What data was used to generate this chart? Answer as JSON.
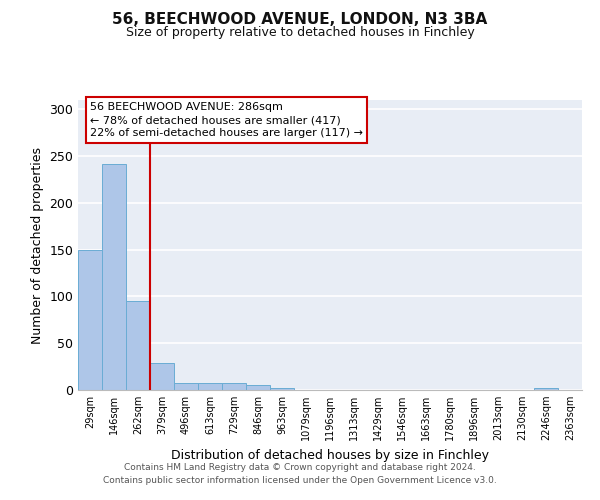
{
  "title1": "56, BEECHWOOD AVENUE, LONDON, N3 3BA",
  "title2": "Size of property relative to detached houses in Finchley",
  "xlabel": "Distribution of detached houses by size in Finchley",
  "ylabel": "Number of detached properties",
  "bin_labels": [
    "29sqm",
    "146sqm",
    "262sqm",
    "379sqm",
    "496sqm",
    "613sqm",
    "729sqm",
    "846sqm",
    "963sqm",
    "1079sqm",
    "1196sqm",
    "1313sqm",
    "1429sqm",
    "1546sqm",
    "1663sqm",
    "1780sqm",
    "1896sqm",
    "2013sqm",
    "2130sqm",
    "2246sqm",
    "2363sqm"
  ],
  "bar_values": [
    150,
    242,
    95,
    29,
    8,
    7,
    7,
    5,
    2,
    0,
    0,
    0,
    0,
    0,
    0,
    0,
    0,
    0,
    0,
    2,
    0
  ],
  "bar_color": "#aec6e8",
  "bar_edge_color": "#6aacd4",
  "annotation_line1": "56 BEECHWOOD AVENUE: 286sqm",
  "annotation_line2": "← 78% of detached houses are smaller (417)",
  "annotation_line3": "22% of semi-detached houses are larger (117) →",
  "vline_color": "#cc0000",
  "ylim": [
    0,
    310
  ],
  "yticks": [
    0,
    50,
    100,
    150,
    200,
    250,
    300
  ],
  "background_color": "#e8edf5",
  "grid_color": "#ffffff",
  "footer_line1": "Contains HM Land Registry data © Crown copyright and database right 2024.",
  "footer_line2": "Contains public sector information licensed under the Open Government Licence v3.0."
}
